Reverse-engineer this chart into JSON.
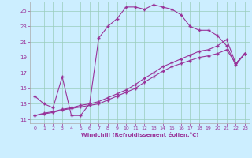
{
  "xlabel": "Windchill (Refroidissement éolien,°C)",
  "bg_color": "#cceeff",
  "line_color": "#993399",
  "grid_color": "#99ccbb",
  "xlim": [
    -0.5,
    23.5
  ],
  "ylim": [
    10.5,
    26.2
  ],
  "xticks": [
    0,
    1,
    2,
    3,
    4,
    5,
    6,
    7,
    8,
    9,
    10,
    11,
    12,
    13,
    14,
    15,
    16,
    17,
    18,
    19,
    20,
    21,
    22,
    23
  ],
  "yticks": [
    11,
    13,
    15,
    17,
    19,
    21,
    23,
    25
  ],
  "line1_x": [
    0,
    1,
    2,
    3,
    4,
    5,
    6,
    7,
    8,
    9,
    10,
    11,
    12,
    13,
    14,
    15,
    16,
    17,
    18,
    19,
    20,
    21,
    22,
    23
  ],
  "line1_y": [
    14.0,
    13.0,
    12.5,
    16.5,
    11.5,
    11.5,
    13.0,
    21.5,
    23.0,
    24.0,
    25.5,
    25.5,
    25.2,
    25.8,
    25.5,
    25.2,
    24.5,
    23.0,
    22.5,
    22.5,
    21.8,
    20.5,
    18.0,
    19.5
  ],
  "line2_x": [
    0,
    1,
    2,
    3,
    4,
    5,
    6,
    7,
    8,
    9,
    10,
    11,
    12,
    13,
    14,
    15,
    16,
    17,
    18,
    19,
    20,
    21,
    22,
    23
  ],
  "line2_y": [
    11.5,
    11.8,
    12.0,
    12.3,
    12.5,
    12.8,
    13.0,
    13.3,
    13.8,
    14.3,
    14.8,
    15.5,
    16.3,
    17.0,
    17.8,
    18.3,
    18.8,
    19.3,
    19.8,
    20.0,
    20.5,
    21.3,
    18.2,
    19.5
  ],
  "line3_x": [
    0,
    1,
    2,
    3,
    4,
    5,
    6,
    7,
    8,
    9,
    10,
    11,
    12,
    13,
    14,
    15,
    16,
    17,
    18,
    19,
    20,
    21,
    22,
    23
  ],
  "line3_y": [
    11.5,
    11.7,
    11.9,
    12.2,
    12.4,
    12.6,
    12.8,
    13.0,
    13.5,
    14.0,
    14.5,
    15.0,
    15.8,
    16.5,
    17.2,
    17.8,
    18.2,
    18.6,
    19.0,
    19.2,
    19.5,
    20.0,
    18.2,
    19.5
  ]
}
